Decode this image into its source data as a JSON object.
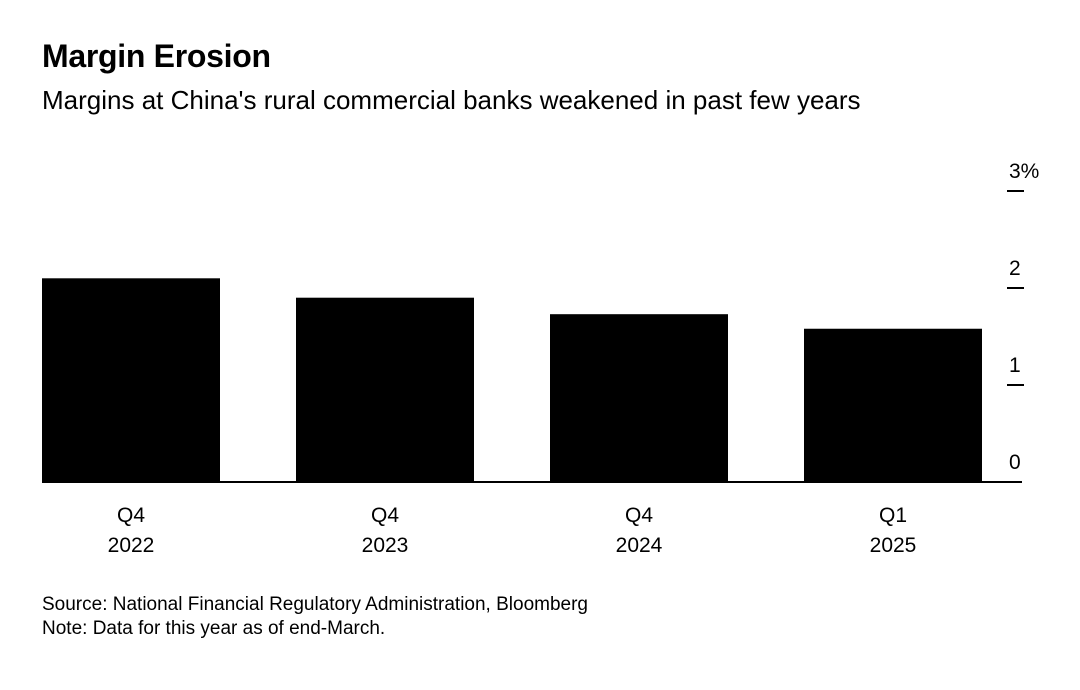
{
  "header": {
    "title": "Margin Erosion",
    "subtitle": "Margins at China's rural commercial banks weakened in past few years"
  },
  "footer": {
    "source": "Source: National Financial Regulatory Administration, Bloomberg",
    "note": "Note: Data for this year as of end-March."
  },
  "colors": {
    "bar": "#000000",
    "axis": "#000000",
    "background": "#ffffff"
  },
  "chart_data": {
    "type": "bar",
    "title": "Margin Erosion",
    "subtitle": "Margins at China's rural commercial banks weakened in past few years",
    "categories": [
      [
        "Q4",
        "2022"
      ],
      [
        "Q4",
        "2023"
      ],
      [
        "Q4",
        "2024"
      ],
      [
        "Q1",
        "2025"
      ]
    ],
    "values": [
      2.1,
      1.9,
      1.73,
      1.58
    ],
    "unit": "%",
    "ylim": [
      0,
      3
    ],
    "y_ticks": [
      "0",
      "1",
      "2",
      "3%"
    ],
    "y_axis_position": "right",
    "grid": false,
    "legend": "none"
  }
}
